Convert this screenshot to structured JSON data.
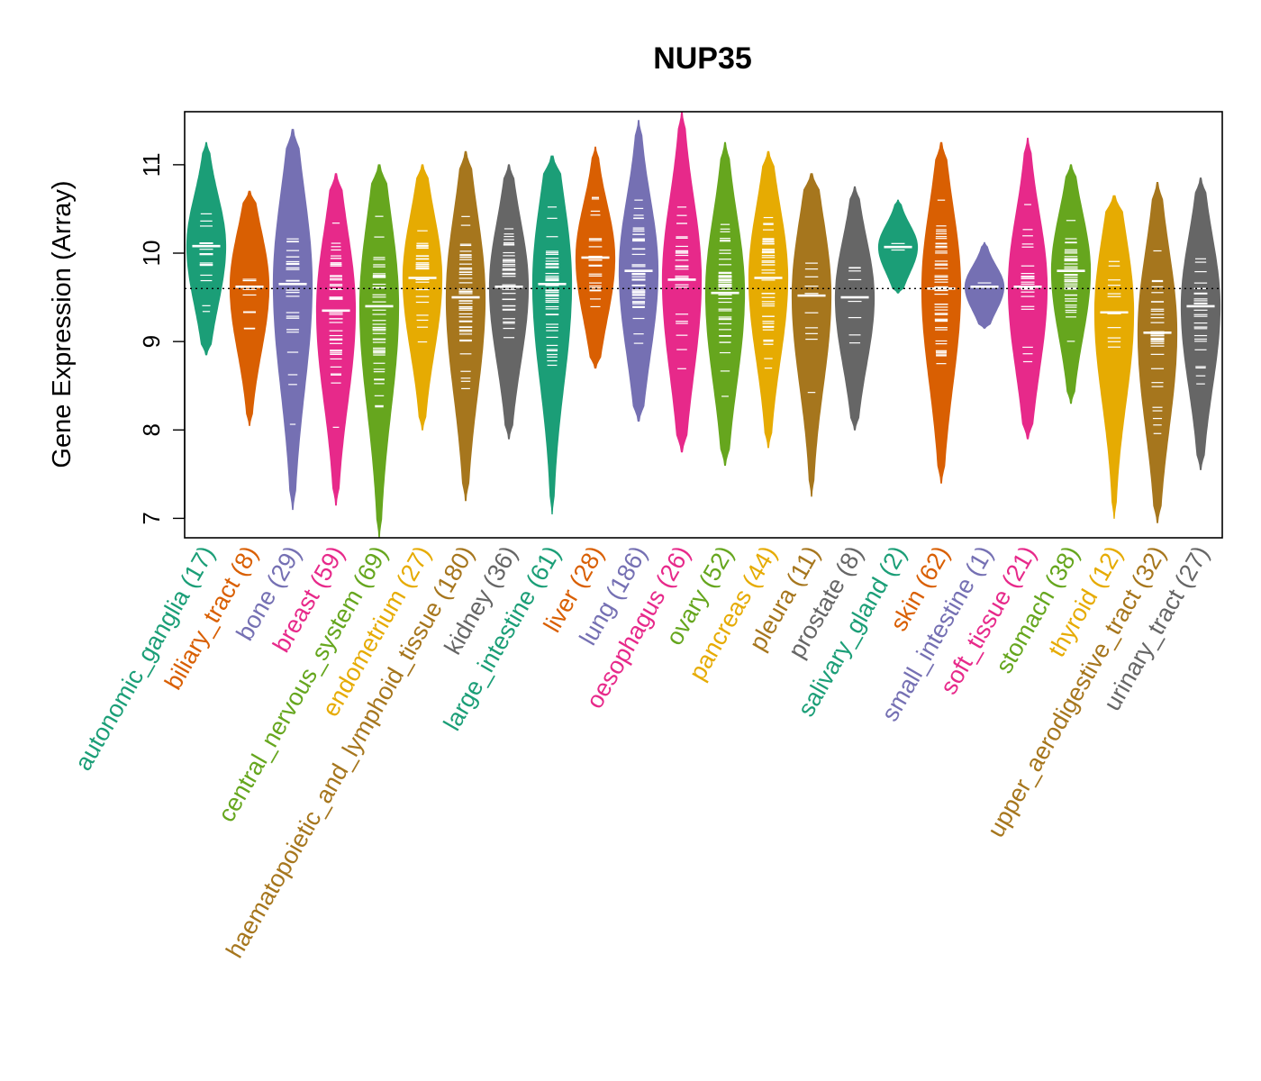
{
  "chart_data": {
    "type": "violin",
    "title": "NUP35",
    "xlabel": "",
    "ylabel": "Gene Expression (Array)",
    "ylim": [
      6.78,
      11.6
    ],
    "yticks": [
      7,
      8,
      9,
      10,
      11
    ],
    "reference_line": 9.6,
    "categories": [
      {
        "name": "autonomic_ganglia",
        "n": 17,
        "label": "autonomic_ganglia (17)",
        "color": "#1B9E77",
        "median": 10.08,
        "min": 8.85,
        "max": 11.25
      },
      {
        "name": "biliary_tract",
        "n": 8,
        "label": "biliary_tract (8)",
        "color": "#D95F02",
        "median": 9.62,
        "min": 8.05,
        "max": 10.7
      },
      {
        "name": "bone",
        "n": 29,
        "label": "bone (29)",
        "color": "#7570B3",
        "median": 9.65,
        "min": 7.1,
        "max": 11.4
      },
      {
        "name": "breast",
        "n": 59,
        "label": "breast (59)",
        "color": "#E7298A",
        "median": 9.35,
        "min": 7.15,
        "max": 10.9
      },
      {
        "name": "central_nervous_system",
        "n": 69,
        "label": "central_nervous_system (69)",
        "color": "#66A61E",
        "median": 9.4,
        "min": 6.78,
        "max": 11.0
      },
      {
        "name": "endometrium",
        "n": 27,
        "label": "endometrium (27)",
        "color": "#E6AB02",
        "median": 9.72,
        "min": 8.0,
        "max": 11.0
      },
      {
        "name": "haematopoietic_and_lymphoid_tissue",
        "n": 180,
        "label": "haematopoietic_and_lymphoid_tissue (180)",
        "color": "#A6761D",
        "median": 9.5,
        "min": 7.2,
        "max": 11.15
      },
      {
        "name": "kidney",
        "n": 36,
        "label": "kidney (36)",
        "color": "#666666",
        "median": 9.62,
        "min": 7.9,
        "max": 11.0
      },
      {
        "name": "large_intestine",
        "n": 61,
        "label": "large_intestine (61)",
        "color": "#1B9E77",
        "median": 9.65,
        "min": 7.05,
        "max": 11.1
      },
      {
        "name": "liver",
        "n": 28,
        "label": "liver (28)",
        "color": "#D95F02",
        "median": 9.95,
        "min": 8.7,
        "max": 11.2
      },
      {
        "name": "lung",
        "n": 186,
        "label": "lung (186)",
        "color": "#7570B3",
        "median": 9.8,
        "min": 8.1,
        "max": 11.5
      },
      {
        "name": "oesophagus",
        "n": 26,
        "label": "oesophagus (26)",
        "color": "#E7298A",
        "median": 9.7,
        "min": 7.75,
        "max": 11.6
      },
      {
        "name": "ovary",
        "n": 52,
        "label": "ovary (52)",
        "color": "#66A61E",
        "median": 9.55,
        "min": 7.6,
        "max": 11.25
      },
      {
        "name": "pancreas",
        "n": 44,
        "label": "pancreas (44)",
        "color": "#E6AB02",
        "median": 9.72,
        "min": 7.8,
        "max": 11.15
      },
      {
        "name": "pleura",
        "n": 11,
        "label": "pleura (11)",
        "color": "#A6761D",
        "median": 9.52,
        "min": 7.25,
        "max": 10.9
      },
      {
        "name": "prostate",
        "n": 8,
        "label": "prostate (8)",
        "color": "#666666",
        "median": 9.5,
        "min": 8.0,
        "max": 10.75
      },
      {
        "name": "salivary_gland",
        "n": 2,
        "label": "salivary_gland (2)",
        "color": "#1B9E77",
        "median": 10.07,
        "min": 9.55,
        "max": 10.6
      },
      {
        "name": "skin",
        "n": 62,
        "label": "skin (62)",
        "color": "#D95F02",
        "median": 9.6,
        "min": 7.4,
        "max": 11.25
      },
      {
        "name": "small_intestine",
        "n": 1,
        "label": "small_intestine (1)",
        "color": "#7570B3",
        "median": 9.62,
        "min": 9.15,
        "max": 10.12
      },
      {
        "name": "soft_tissue",
        "n": 21,
        "label": "soft_tissue (21)",
        "color": "#E7298A",
        "median": 9.62,
        "min": 7.9,
        "max": 11.3
      },
      {
        "name": "stomach",
        "n": 38,
        "label": "stomach (38)",
        "color": "#66A61E",
        "median": 9.8,
        "min": 8.3,
        "max": 11.0
      },
      {
        "name": "thyroid",
        "n": 12,
        "label": "thyroid (12)",
        "color": "#E6AB02",
        "median": 9.33,
        "min": 7.0,
        "max": 10.65
      },
      {
        "name": "upper_aerodigestive_tract",
        "n": 32,
        "label": "upper_aerodigestive_tract (32)",
        "color": "#A6761D",
        "median": 9.1,
        "min": 6.95,
        "max": 10.8
      },
      {
        "name": "urinary_tract",
        "n": 27,
        "label": "urinary_tract (27)",
        "color": "#666666",
        "median": 9.4,
        "min": 7.55,
        "max": 10.85
      }
    ]
  }
}
